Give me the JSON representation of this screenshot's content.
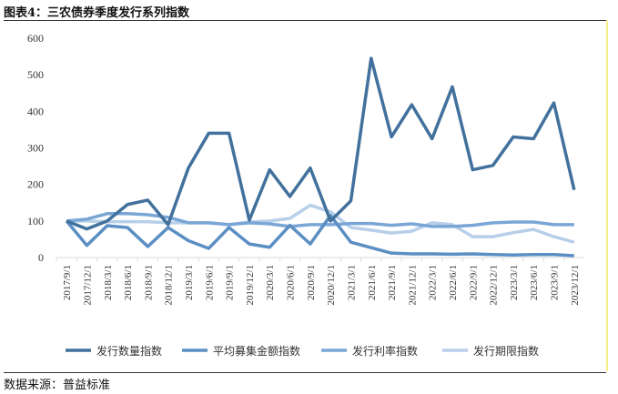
{
  "title": "图表4：三农债券季度发行系列指数",
  "source": "数据来源：普益标准",
  "chart_data": {
    "type": "line",
    "title": "三农债券季度发行系列指数",
    "xlabel": "",
    "ylabel": "",
    "ylim": [
      0,
      600
    ],
    "yticks": [
      0,
      100,
      200,
      300,
      400,
      500,
      600
    ],
    "legend_position": "bottom",
    "grid": false,
    "categories": [
      "2017/9/1",
      "2017/12/1",
      "2018/3/1",
      "2018/6/1",
      "2018/9/1",
      "2018/12/1",
      "2019/3/1",
      "2019/6/1",
      "2019/9/1",
      "2019/12/1",
      "2020/3/1",
      "2020/6/1",
      "2020/9/1",
      "2020/12/1",
      "2021/3/1",
      "2021/6/1",
      "2021/9/1",
      "2021/12/1",
      "2022/3/1",
      "2022/6/1",
      "2022/9/1",
      "2022/12/1",
      "2023/3/1",
      "2023/6/1",
      "2023/9/1",
      "2023/12/1"
    ],
    "series": [
      {
        "name": "发行数量指数",
        "color": "#41719c",
        "values": [
          100,
          78,
          100,
          145,
          157,
          90,
          245,
          340,
          340,
          102,
          240,
          167,
          245,
          100,
          155,
          545,
          330,
          418,
          325,
          467,
          240,
          252,
          330,
          325,
          423,
          185
        ]
      },
      {
        "name": "平均募集金额指数",
        "color": "#5b8fc4",
        "values": [
          100,
          33,
          87,
          82,
          30,
          82,
          46,
          25,
          82,
          37,
          28,
          88,
          37,
          115,
          42,
          27,
          12,
          10,
          10,
          9,
          10,
          8,
          7,
          8,
          8,
          5
        ]
      },
      {
        "name": "发行利率指数",
        "color": "#7aa6d6",
        "values": [
          100,
          105,
          120,
          120,
          117,
          110,
          95,
          95,
          90,
          95,
          92,
          85,
          90,
          90,
          93,
          93,
          88,
          92,
          85,
          85,
          88,
          95,
          97,
          97,
          90,
          90
        ]
      },
      {
        "name": "发行期限指数",
        "color": "#b8cfe9",
        "values": [
          100,
          100,
          98,
          98,
          98,
          95,
          95,
          95,
          90,
          97,
          100,
          107,
          143,
          125,
          82,
          75,
          67,
          72,
          95,
          90,
          57,
          57,
          68,
          77,
          57,
          42
        ]
      }
    ]
  }
}
